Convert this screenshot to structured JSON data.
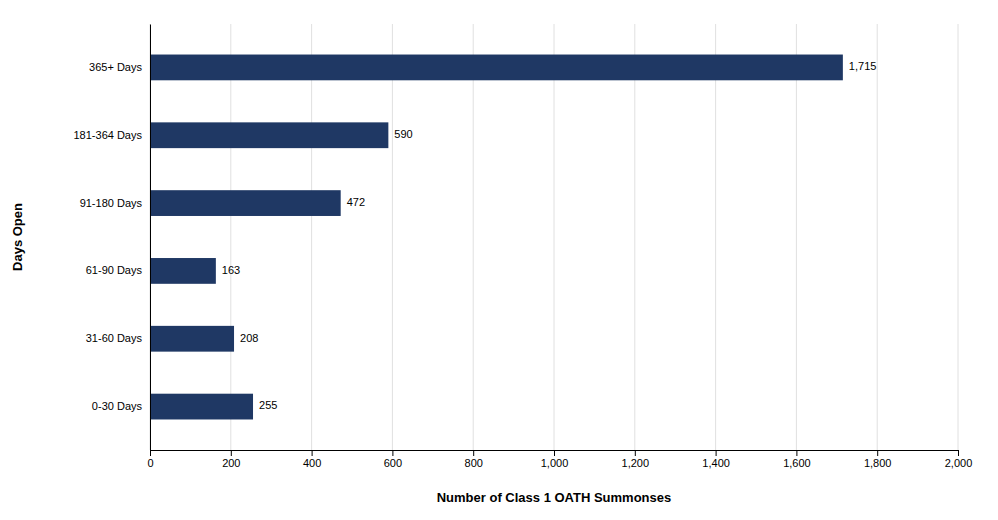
{
  "chart_data": {
    "type": "bar",
    "orientation": "horizontal",
    "categories": [
      "365+ Days",
      "181-364 Days",
      "91-180 Days",
      "61-90 Days",
      "31-60 Days",
      "0-30 Days"
    ],
    "values": [
      1715,
      590,
      472,
      163,
      208,
      255
    ],
    "value_labels": [
      "1,715",
      "590",
      "472",
      "163",
      "208",
      "255"
    ],
    "data_labels": true,
    "color": "#1F3864",
    "xlabel": "Number of Class 1 OATH Summonses",
    "ylabel": "Days Open",
    "xlim": [
      0,
      2000
    ],
    "xticks": [
      0,
      200,
      400,
      600,
      800,
      {
        "value": 1000,
        "label": "1,000"
      },
      {
        "value": 1200,
        "label": "1,200"
      },
      {
        "value": 1400,
        "label": "1,400"
      },
      {
        "value": 1600,
        "label": "1,600"
      },
      {
        "value": 1800,
        "label": "1,800"
      },
      {
        "value": 2000,
        "label": "2,000"
      }
    ],
    "grid": true
  }
}
